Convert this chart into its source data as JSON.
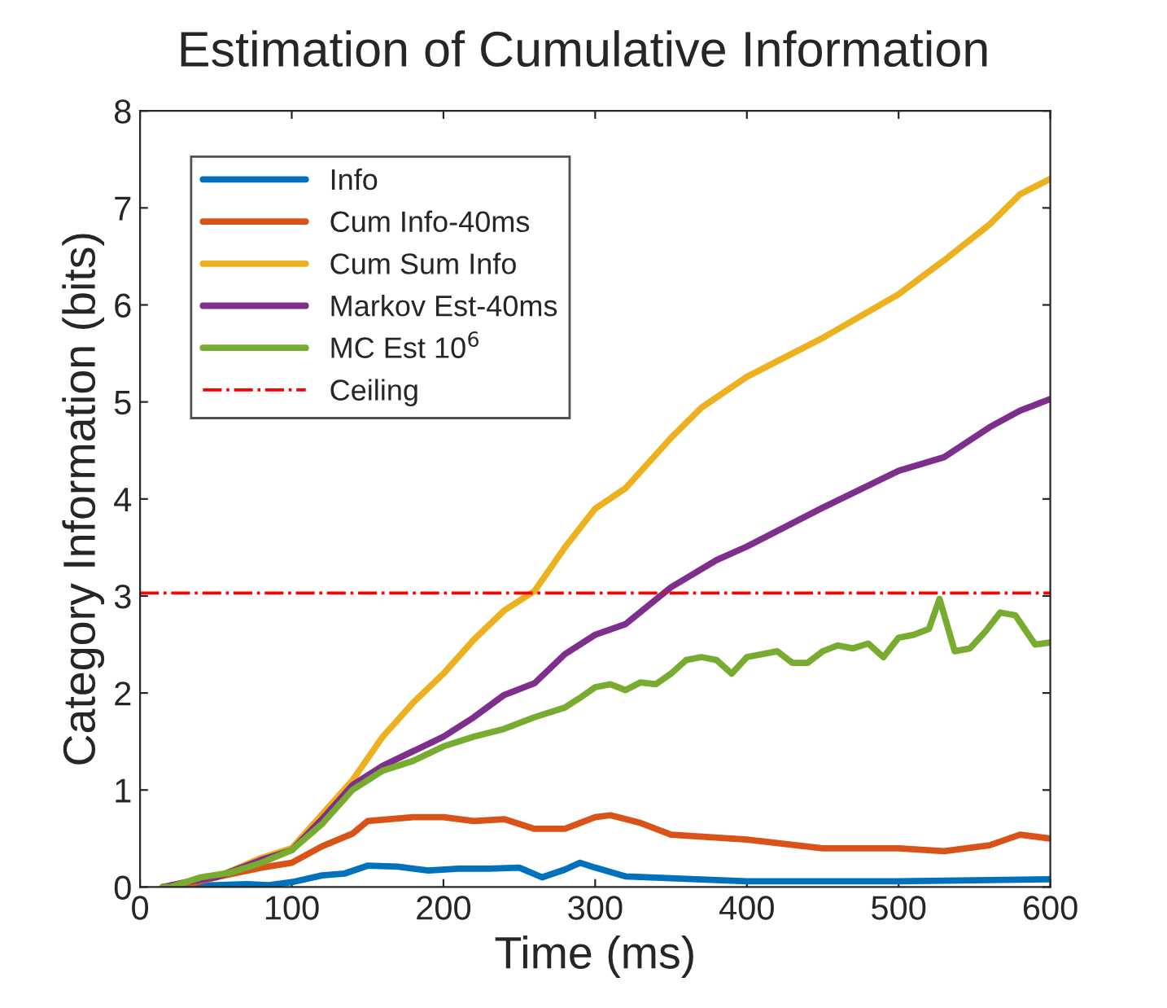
{
  "chart_data": {
    "type": "line",
    "title": "Estimation of Cumulative Information",
    "xlabel": "Time (ms)",
    "ylabel": "Category Information (bits)",
    "xlim": [
      0,
      600
    ],
    "xticks": [
      0,
      100,
      200,
      300,
      400,
      500,
      600
    ],
    "ylim": [
      0,
      8
    ],
    "yticks": [
      0,
      1,
      2,
      3,
      4,
      5,
      6,
      7,
      8
    ],
    "grid": false,
    "legend": "top left",
    "line_style": "solid",
    "marker": "none",
    "series": [
      {
        "name": "Info",
        "color": "#0072bd",
        "x": [
          15,
          30,
          50,
          70,
          85,
          100,
          120,
          135,
          150,
          170,
          190,
          210,
          230,
          250,
          265,
          280,
          290,
          300,
          320,
          350,
          400,
          450,
          500,
          550,
          600
        ],
        "values": [
          0,
          0.01,
          0.02,
          0.03,
          0.02,
          0.05,
          0.12,
          0.14,
          0.22,
          0.21,
          0.17,
          0.19,
          0.19,
          0.2,
          0.1,
          0.18,
          0.25,
          0.2,
          0.11,
          0.09,
          0.06,
          0.06,
          0.06,
          0.07,
          0.08
        ]
      },
      {
        "name": "Cum Info-40ms",
        "color": "#d95319",
        "x": [
          15,
          30,
          50,
          80,
          100,
          120,
          140,
          150,
          180,
          200,
          220,
          240,
          260,
          280,
          300,
          310,
          330,
          350,
          400,
          450,
          500,
          530,
          560,
          580,
          600
        ],
        "values": [
          0,
          0.02,
          0.1,
          0.2,
          0.25,
          0.42,
          0.55,
          0.68,
          0.72,
          0.72,
          0.68,
          0.7,
          0.6,
          0.6,
          0.72,
          0.74,
          0.66,
          0.54,
          0.49,
          0.4,
          0.4,
          0.37,
          0.43,
          0.54,
          0.5
        ]
      },
      {
        "name": "Cum Sum Info",
        "color": "#edb120",
        "x": [
          15,
          30,
          50,
          80,
          100,
          120,
          140,
          160,
          180,
          200,
          220,
          240,
          260,
          280,
          300,
          320,
          350,
          370,
          400,
          450,
          500,
          530,
          560,
          580,
          600
        ],
        "values": [
          0,
          0.05,
          0.1,
          0.3,
          0.4,
          0.75,
          1.1,
          1.55,
          1.9,
          2.2,
          2.55,
          2.85,
          3.05,
          3.5,
          3.9,
          4.11,
          4.63,
          4.94,
          5.26,
          5.66,
          6.11,
          6.46,
          6.83,
          7.14,
          7.3
        ]
      },
      {
        "name": "Markov Est-40ms",
        "color": "#7e2f8e",
        "x": [
          15,
          30,
          50,
          80,
          100,
          120,
          140,
          160,
          180,
          200,
          220,
          240,
          260,
          280,
          300,
          320,
          350,
          380,
          400,
          450,
          500,
          530,
          560,
          580,
          600
        ],
        "values": [
          0,
          0.05,
          0.1,
          0.28,
          0.38,
          0.7,
          1.05,
          1.25,
          1.4,
          1.55,
          1.75,
          1.98,
          2.1,
          2.4,
          2.6,
          2.71,
          3.09,
          3.37,
          3.51,
          3.91,
          4.29,
          4.43,
          4.74,
          4.91,
          5.03
        ]
      },
      {
        "name": "MC Est 10$^{6}$",
        "color": "#77ac30",
        "x": [
          15,
          20,
          30,
          40,
          60,
          80,
          100,
          120,
          140,
          160,
          180,
          200,
          220,
          240,
          260,
          280,
          290,
          300,
          310,
          320,
          330,
          340,
          350,
          360,
          370,
          380,
          390,
          400,
          420,
          430,
          440,
          450,
          460,
          470,
          480,
          490,
          500,
          510,
          520,
          527,
          537,
          547,
          557,
          567,
          577,
          590,
          600
        ],
        "values": [
          0,
          0,
          0.05,
          0.1,
          0.15,
          0.25,
          0.38,
          0.65,
          1.0,
          1.2,
          1.3,
          1.45,
          1.55,
          1.63,
          1.75,
          1.85,
          1.95,
          2.06,
          2.09,
          2.03,
          2.11,
          2.09,
          2.2,
          2.34,
          2.37,
          2.34,
          2.2,
          2.37,
          2.43,
          2.31,
          2.31,
          2.43,
          2.49,
          2.46,
          2.51,
          2.37,
          2.57,
          2.6,
          2.66,
          2.97,
          2.43,
          2.46,
          2.63,
          2.83,
          2.8,
          2.5,
          2.52
        ]
      }
    ],
    "ref_lines": [
      {
        "axis": "y",
        "value": 3.03,
        "label": "Ceiling",
        "color": "#ff0000",
        "line_style": "dashdot"
      }
    ]
  }
}
